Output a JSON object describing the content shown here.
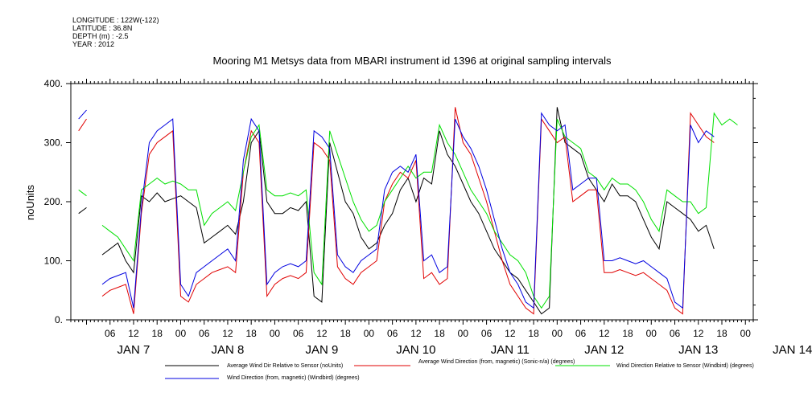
{
  "header": {
    "meta_lines": [
      "LONGITUDE : 122W(-122)",
      "LATITUDE : 36.8N",
      "DEPTH (m) : -2.5",
      "YEAR : 2012"
    ]
  },
  "chart_data": {
    "type": "line",
    "title": "Mooring M1 Metsys data from MBARI instrument id 1396 at original sampling intervals",
    "ylabel": "noUnits",
    "xlabel": "",
    "ylim": [
      0,
      400
    ],
    "yticks": [
      0,
      100,
      200,
      300,
      400
    ],
    "ytick_labels": [
      "0.",
      "100.",
      "200.",
      "300.",
      "400."
    ],
    "xlim_hours_from_jan7_00": [
      -4,
      170
    ],
    "x_hour_labels": [
      "06",
      "12",
      "18",
      "00",
      "06",
      "12",
      "18",
      "00",
      "06",
      "12",
      "18",
      "00",
      "06",
      "12",
      "18",
      "00",
      "06",
      "12",
      "18",
      "00",
      "06",
      "12",
      "18",
      "00",
      "06",
      "12",
      "18",
      "00"
    ],
    "x_day_labels": [
      "JAN 7",
      "JAN 8",
      "JAN 9",
      "JAN 10",
      "JAN 11",
      "JAN 12",
      "JAN 13",
      "JAN 14"
    ],
    "grid": false,
    "legend_placement": "bottom",
    "colors": {
      "avg_dir_rel": "#000000",
      "avg_dir_sonic": "#e00000",
      "dir_rel_windbird": "#00e000",
      "dir_windbird": "#0000e0"
    },
    "series": [
      {
        "key": "avg_dir_rel",
        "name": "Average Wind Dir Relative to Sensor (noUnits)",
        "x": [
          -2,
          0,
          2,
          4,
          6,
          8,
          10,
          12,
          14,
          16,
          18,
          20,
          22,
          24,
          26,
          28,
          30,
          32,
          34,
          36,
          38,
          40,
          42,
          44,
          46,
          48,
          50,
          52,
          54,
          56,
          58,
          60,
          62,
          64,
          66,
          68,
          70,
          72,
          74,
          76,
          78,
          80,
          82,
          84,
          86,
          88,
          90,
          92,
          94,
          96,
          98,
          100,
          102,
          104,
          106,
          108,
          110,
          112,
          114,
          116,
          118,
          120,
          122,
          124,
          126,
          128,
          130,
          132,
          134,
          136,
          138,
          140,
          142,
          144,
          146,
          148,
          150,
          152,
          154,
          156,
          158,
          160,
          162,
          164,
          166
        ],
        "y": [
          180,
          190,
          null,
          110,
          120,
          130,
          100,
          80,
          210,
          200,
          215,
          200,
          205,
          210,
          200,
          190,
          130,
          140,
          150,
          160,
          145,
          200,
          300,
          320,
          200,
          180,
          180,
          190,
          185,
          200,
          40,
          30,
          300,
          250,
          200,
          180,
          140,
          120,
          130,
          160,
          180,
          220,
          240,
          200,
          240,
          230,
          320,
          280,
          260,
          230,
          200,
          180,
          150,
          120,
          100,
          80,
          70,
          50,
          30,
          10,
          20,
          360,
          300,
          290,
          280,
          240,
          220,
          200,
          230,
          210,
          210,
          200,
          170,
          140,
          120,
          200,
          190,
          180,
          170,
          150,
          160,
          120,
          null,
          null,
          null
        ]
      },
      {
        "key": "avg_dir_sonic",
        "name": "Average Wind Direction (from, magnetic) (Sonic-n/a) (degrees)",
        "x": [
          -2,
          0,
          2,
          4,
          6,
          8,
          10,
          12,
          14,
          16,
          18,
          20,
          22,
          24,
          26,
          28,
          30,
          32,
          34,
          36,
          38,
          40,
          42,
          44,
          46,
          48,
          50,
          52,
          54,
          56,
          58,
          60,
          62,
          64,
          66,
          68,
          70,
          72,
          74,
          76,
          78,
          80,
          82,
          84,
          86,
          88,
          90,
          92,
          94,
          96,
          98,
          100,
          102,
          104,
          106,
          108,
          110,
          112,
          114,
          116,
          118,
          120,
          122,
          124,
          126,
          128,
          130,
          132,
          134,
          136,
          138,
          140,
          142,
          144,
          146,
          148,
          150,
          152,
          154,
          156,
          158,
          160,
          162,
          164,
          166
        ],
        "y": [
          320,
          340,
          null,
          40,
          50,
          55,
          60,
          10,
          180,
          280,
          300,
          310,
          320,
          40,
          30,
          60,
          70,
          80,
          85,
          90,
          80,
          250,
          320,
          300,
          40,
          60,
          70,
          75,
          70,
          80,
          300,
          290,
          270,
          90,
          70,
          60,
          80,
          90,
          100,
          200,
          230,
          250,
          240,
          270,
          70,
          80,
          60,
          70,
          360,
          300,
          280,
          240,
          200,
          150,
          100,
          60,
          40,
          20,
          10,
          340,
          320,
          300,
          310,
          200,
          210,
          220,
          220,
          80,
          80,
          85,
          80,
          75,
          80,
          70,
          60,
          50,
          20,
          10,
          350,
          330,
          310,
          300,
          null,
          null,
          null
        ]
      },
      {
        "key": "dir_rel_windbird",
        "name": "Wind Direction Relative to Sensor (Windbird) (degrees)",
        "x": [
          -2,
          0,
          2,
          4,
          6,
          8,
          10,
          12,
          14,
          16,
          18,
          20,
          22,
          24,
          26,
          28,
          30,
          32,
          34,
          36,
          38,
          40,
          42,
          44,
          46,
          48,
          50,
          52,
          54,
          56,
          58,
          60,
          62,
          64,
          66,
          68,
          70,
          72,
          74,
          76,
          78,
          80,
          82,
          84,
          86,
          88,
          90,
          92,
          94,
          96,
          98,
          100,
          102,
          104,
          106,
          108,
          110,
          112,
          114,
          116,
          118,
          120,
          122,
          124,
          126,
          128,
          130,
          132,
          134,
          136,
          138,
          140,
          142,
          144,
          146,
          148,
          150,
          152,
          154,
          156,
          158,
          160,
          162,
          164,
          166
        ],
        "y": [
          220,
          210,
          null,
          160,
          150,
          140,
          120,
          100,
          220,
          230,
          240,
          230,
          235,
          230,
          220,
          220,
          160,
          180,
          190,
          200,
          185,
          250,
          310,
          330,
          220,
          210,
          210,
          215,
          210,
          220,
          80,
          60,
          320,
          280,
          240,
          200,
          170,
          150,
          160,
          200,
          220,
          240,
          260,
          240,
          250,
          250,
          330,
          300,
          280,
          250,
          220,
          200,
          180,
          150,
          130,
          110,
          100,
          80,
          40,
          20,
          40,
          340,
          310,
          300,
          290,
          250,
          240,
          220,
          240,
          230,
          230,
          220,
          200,
          170,
          150,
          220,
          210,
          200,
          200,
          180,
          190,
          350,
          330,
          340,
          330
        ]
      },
      {
        "key": "dir_windbird",
        "name": "Wind Direction (from, magnetic) (Windbird) (degrees)",
        "x": [
          -2,
          0,
          2,
          4,
          6,
          8,
          10,
          12,
          14,
          16,
          18,
          20,
          22,
          24,
          26,
          28,
          30,
          32,
          34,
          36,
          38,
          40,
          42,
          44,
          46,
          48,
          50,
          52,
          54,
          56,
          58,
          60,
          62,
          64,
          66,
          68,
          70,
          72,
          74,
          76,
          78,
          80,
          82,
          84,
          86,
          88,
          90,
          92,
          94,
          96,
          98,
          100,
          102,
          104,
          106,
          108,
          110,
          112,
          114,
          116,
          118,
          120,
          122,
          124,
          126,
          128,
          130,
          132,
          134,
          136,
          138,
          140,
          142,
          144,
          146,
          148,
          150,
          152,
          154,
          156,
          158,
          160,
          162,
          164,
          166
        ],
        "y": [
          340,
          355,
          null,
          60,
          70,
          75,
          80,
          20,
          190,
          300,
          320,
          330,
          340,
          60,
          40,
          80,
          90,
          100,
          110,
          120,
          100,
          270,
          340,
          320,
          60,
          80,
          90,
          95,
          90,
          100,
          320,
          310,
          290,
          110,
          90,
          80,
          100,
          110,
          120,
          220,
          250,
          260,
          250,
          280,
          100,
          110,
          80,
          90,
          340,
          310,
          290,
          260,
          220,
          170,
          120,
          80,
          60,
          30,
          20,
          350,
          330,
          320,
          330,
          220,
          230,
          240,
          240,
          100,
          100,
          105,
          100,
          95,
          100,
          90,
          80,
          70,
          30,
          20,
          330,
          300,
          320,
          310,
          null,
          null,
          null
        ]
      }
    ]
  }
}
